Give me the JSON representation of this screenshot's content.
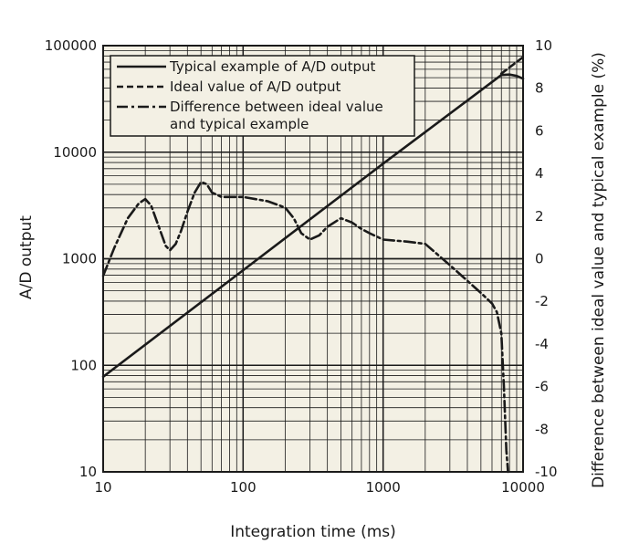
{
  "chart_data": {
    "type": "line",
    "xlabel": "Integration time (ms)",
    "ylabel": "A/D output",
    "y2label": "Difference between ideal value and typical example (%)",
    "x_scale": "log",
    "y_scale": "log",
    "xlim": [
      10,
      10000
    ],
    "ylim": [
      10,
      100000
    ],
    "y2lim": [
      -10,
      10
    ],
    "grid": true,
    "background": "#f3f0e4",
    "legend_position": "top-left",
    "x_ticks": [
      "10",
      "100",
      "1000",
      "10000"
    ],
    "y_ticks": [
      "10",
      "100",
      "1000",
      "10000",
      "100000"
    ],
    "y2_ticks": [
      "10",
      "8",
      "6",
      "4",
      "2",
      "0",
      "-2",
      "-4",
      "-6",
      "-8",
      "-10"
    ],
    "legend": [
      "Typical example of A/D output",
      "Ideal value of A/D output",
      "Difference between ideal value",
      "and typical example"
    ],
    "series": [
      {
        "name": "Typical example of A/D output",
        "axis": "left",
        "style": "solid",
        "x": [
          10,
          100,
          1000,
          7000,
          8000,
          9000,
          10000
        ],
        "y": [
          78,
          780,
          7800,
          53000,
          53500,
          52000,
          49000
        ]
      },
      {
        "name": "Ideal value of A/D output",
        "axis": "left",
        "style": "dashed",
        "x": [
          7000,
          8000,
          9000,
          10000
        ],
        "y": [
          54600,
          62400,
          70200,
          78000
        ]
      },
      {
        "name": "Difference between ideal value and typical example",
        "axis": "right",
        "style": "dashdot",
        "x": [
          10,
          12,
          15,
          18,
          20,
          22,
          25,
          28,
          30,
          33,
          36,
          40,
          45,
          50,
          55,
          60,
          65,
          70,
          80,
          100,
          150,
          200,
          230,
          260,
          300,
          350,
          400,
          500,
          600,
          700,
          800,
          1000,
          1500,
          2000,
          3000,
          5000,
          6000,
          6500,
          7000,
          7300,
          7600,
          7800
        ],
        "y": [
          -0.8,
          0.5,
          1.9,
          2.6,
          2.8,
          2.5,
          1.5,
          0.6,
          0.4,
          0.7,
          1.3,
          2.2,
          3.1,
          3.6,
          3.5,
          3.1,
          3.0,
          2.9,
          2.9,
          2.9,
          2.7,
          2.4,
          1.9,
          1.2,
          0.9,
          1.1,
          1.5,
          1.9,
          1.7,
          1.4,
          1.2,
          0.9,
          0.8,
          0.7,
          -0.3,
          -1.6,
          -2.1,
          -2.5,
          -3.5,
          -6.0,
          -9.0,
          -10.0
        ]
      }
    ]
  }
}
